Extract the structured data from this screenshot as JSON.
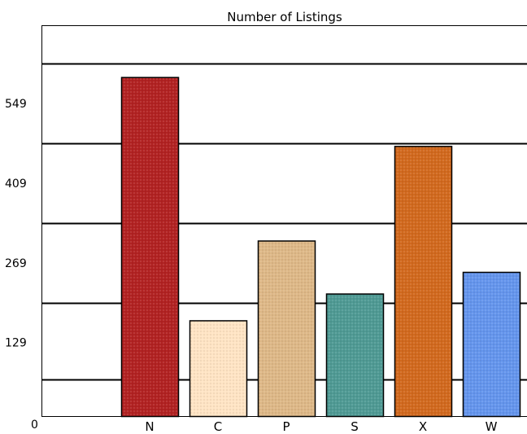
{
  "chart_data": {
    "type": "bar",
    "title": "Number of Listings",
    "xlabel": "",
    "ylabel": "",
    "categories": [
      "N",
      "C",
      "P",
      "S",
      "X",
      "W"
    ],
    "values": [
      595,
      168,
      308,
      215,
      474,
      253
    ],
    "colors": [
      "#B22222",
      "#FFE4C4",
      "#DEB887",
      "#4F9A94",
      "#D2691E",
      "#6495ED"
    ],
    "ylim": [
      0,
      686
    ],
    "yticks": [
      0,
      129,
      269,
      409,
      549
    ],
    "grid": true,
    "legend": "none"
  }
}
